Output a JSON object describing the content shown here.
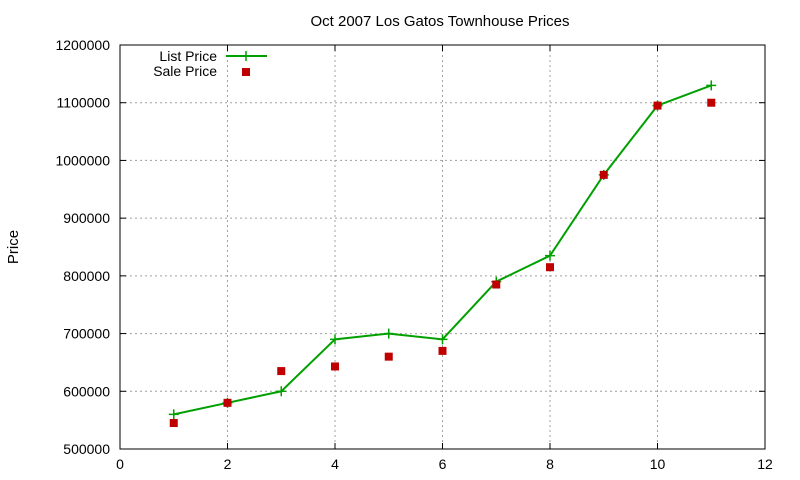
{
  "chart_data": {
    "type": "line",
    "title": "Oct 2007 Los Gatos Townhouse Prices",
    "xlabel": "",
    "ylabel": "Price",
    "xlim": [
      0,
      12
    ],
    "ylim": [
      500000,
      1200000
    ],
    "xticks": [
      0,
      2,
      4,
      6,
      8,
      10,
      12
    ],
    "yticks": [
      500000,
      600000,
      700000,
      800000,
      900000,
      1000000,
      1100000,
      1200000
    ],
    "grid": true,
    "legend_position": "top-left",
    "series": [
      {
        "name": "List Price",
        "style": "line-with-plus-markers",
        "color": "#00a000",
        "x": [
          1,
          2,
          3,
          4,
          5,
          6,
          7,
          8,
          9,
          10,
          11
        ],
        "y": [
          560000,
          580000,
          600000,
          690000,
          700000,
          690000,
          790000,
          835000,
          975000,
          1095000,
          1130000
        ]
      },
      {
        "name": "Sale Price",
        "style": "square-markers",
        "color": "#c00000",
        "x": [
          1,
          2,
          3,
          4,
          5,
          6,
          7,
          8,
          9,
          10,
          11
        ],
        "y": [
          545000,
          580000,
          635000,
          643000,
          660000,
          670000,
          785000,
          815000,
          975000,
          1095000,
          1100000
        ]
      }
    ]
  }
}
